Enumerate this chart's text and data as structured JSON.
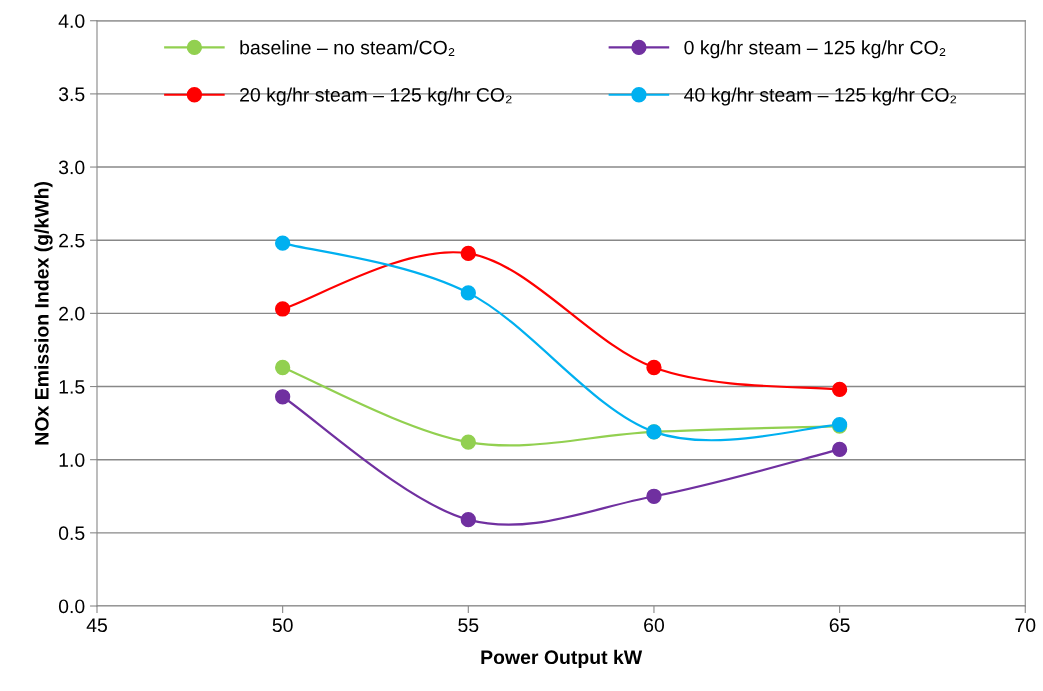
{
  "chart_data": {
    "type": "line",
    "xlabel": "Power Output kW",
    "ylabel": "NOx Emission Index (g/kWh)",
    "x": [
      50,
      55,
      60,
      65
    ],
    "series": [
      {
        "name": "baseline – no steam/CO₂",
        "color": "#92d050",
        "values": [
          1.63,
          1.12,
          1.19,
          1.23
        ]
      },
      {
        "name": "0 kg/hr steam – 125 kg/hr CO₂",
        "color": "#7030a0",
        "values": [
          1.43,
          0.59,
          0.75,
          1.07
        ]
      },
      {
        "name": "20 kg/hr steam – 125 kg/hr CO₂",
        "color": "#ff0000",
        "values": [
          2.03,
          2.41,
          1.63,
          1.48
        ]
      },
      {
        "name": "40 kg/hr steam – 125 kg/hr CO₂",
        "color": "#00b0f0",
        "values": [
          2.48,
          2.14,
          1.19,
          1.24
        ]
      }
    ],
    "xlim": [
      45,
      70
    ],
    "xticks": [
      45,
      50,
      55,
      60,
      65,
      70
    ],
    "ylim": [
      0,
      4
    ],
    "yticks": [
      {
        "value": 0,
        "label": "0.0"
      },
      {
        "value": 0.5,
        "label": "0.5"
      },
      {
        "value": 1,
        "label": "1.0"
      },
      {
        "value": 1.5,
        "label": "1.5"
      },
      {
        "value": 2,
        "label": "2.0"
      },
      {
        "value": 2.5,
        "label": "2.5"
      },
      {
        "value": 3,
        "label": "3.0"
      },
      {
        "value": 3.5,
        "label": "3.5"
      },
      {
        "value": 4,
        "label": "4.0"
      }
    ],
    "grid": "y",
    "legend": "top",
    "marker": "circle",
    "line_style": "solid"
  }
}
